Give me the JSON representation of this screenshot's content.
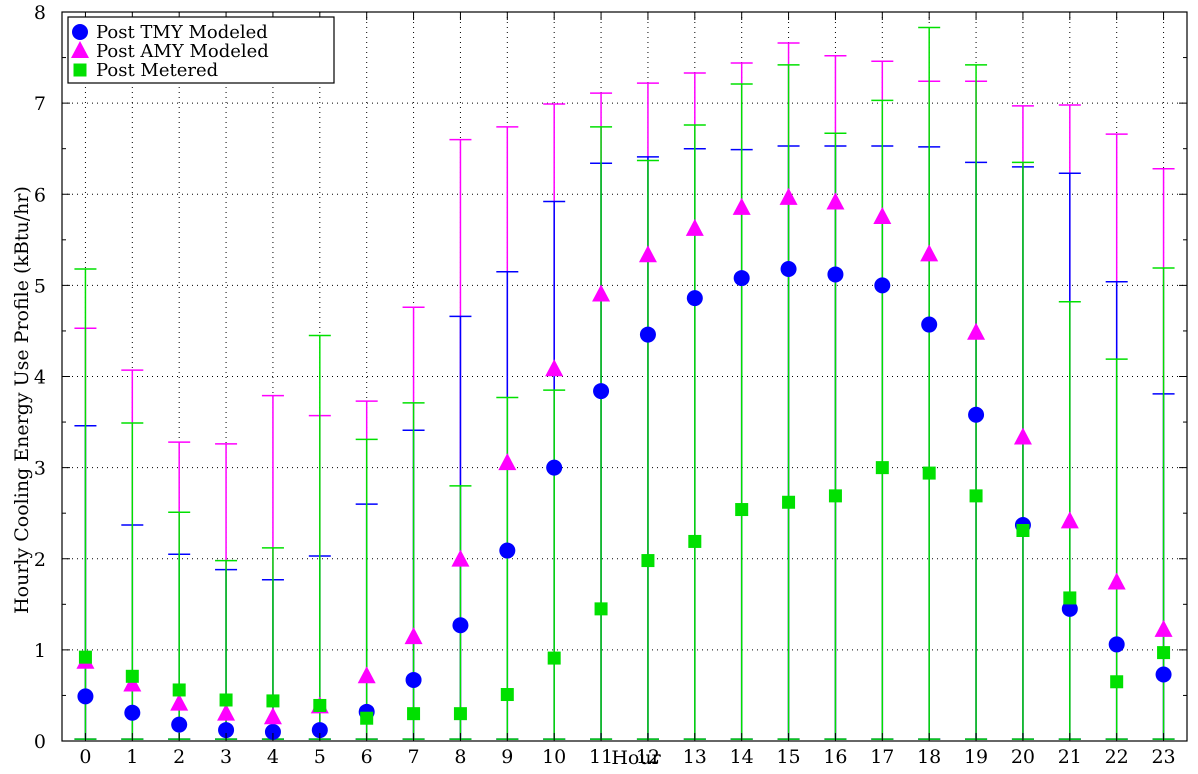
{
  "chart_data": {
    "type": "scatter",
    "xlabel": "Hour",
    "ylabel": "Hourly Cooling Energy Use Profile (kBtu/hr)",
    "xlim": [
      -0.5,
      23.5
    ],
    "ylim": [
      0,
      8
    ],
    "x_ticks": [
      0,
      1,
      2,
      3,
      4,
      5,
      6,
      7,
      8,
      9,
      10,
      11,
      12,
      13,
      14,
      15,
      16,
      17,
      18,
      19,
      20,
      21,
      22,
      23
    ],
    "y_ticks": [
      0,
      1,
      2,
      3,
      4,
      5,
      6,
      7,
      8
    ],
    "grid": true,
    "legend_position": "top-left",
    "series": [
      {
        "name": "Post TMY Modeled",
        "marker": "circle",
        "color": "#0000ff",
        "x": [
          0,
          1,
          2,
          3,
          4,
          5,
          6,
          7,
          8,
          9,
          10,
          11,
          12,
          13,
          14,
          15,
          16,
          17,
          18,
          19,
          20,
          21,
          22,
          23
        ],
        "values": [
          0.49,
          0.31,
          0.18,
          0.12,
          0.1,
          0.12,
          0.32,
          0.67,
          1.27,
          2.09,
          3.0,
          3.84,
          4.46,
          4.86,
          5.08,
          5.18,
          5.12,
          5.0,
          4.57,
          3.58,
          2.37,
          1.45,
          1.06,
          0.73
        ],
        "error_low": [
          0.02,
          0.02,
          0.02,
          0.02,
          0.02,
          0.02,
          0.02,
          0.02,
          0.02,
          0.02,
          0.02,
          0.02,
          0.02,
          0.02,
          0.02,
          0.02,
          0.02,
          0.02,
          0.02,
          0.02,
          0.02,
          0.02,
          0.02,
          0.02
        ],
        "error_high": [
          3.46,
          2.37,
          2.05,
          1.88,
          1.77,
          2.03,
          2.6,
          3.41,
          4.66,
          5.15,
          5.92,
          6.34,
          6.41,
          6.5,
          6.49,
          6.53,
          6.53,
          6.53,
          6.52,
          6.35,
          6.3,
          6.23,
          5.04,
          3.81
        ]
      },
      {
        "name": "Post AMY Modeled",
        "marker": "triangle",
        "color": "#ff00ff",
        "x": [
          0,
          1,
          2,
          3,
          4,
          5,
          6,
          7,
          8,
          9,
          10,
          11,
          12,
          13,
          14,
          15,
          16,
          17,
          18,
          19,
          20,
          21,
          22,
          23
        ],
        "values": [
          0.87,
          0.62,
          0.41,
          0.3,
          0.26,
          0.38,
          0.71,
          1.14,
          1.99,
          3.05,
          4.08,
          4.9,
          5.33,
          5.62,
          5.85,
          5.96,
          5.91,
          5.75,
          5.34,
          4.48,
          3.33,
          2.41,
          1.74,
          1.22
        ],
        "error_low": [
          0.02,
          0.02,
          0.02,
          0.02,
          0.02,
          0.02,
          0.02,
          0.02,
          0.02,
          0.02,
          0.02,
          0.02,
          0.02,
          0.02,
          0.02,
          0.02,
          0.02,
          0.02,
          0.02,
          0.02,
          0.02,
          0.02,
          0.02,
          0.02
        ],
        "error_high": [
          4.53,
          4.07,
          3.28,
          3.26,
          3.79,
          3.57,
          3.73,
          4.76,
          6.6,
          6.74,
          6.99,
          7.11,
          7.22,
          7.33,
          7.44,
          7.66,
          7.52,
          7.46,
          7.24,
          7.24,
          6.97,
          6.98,
          6.66,
          6.28
        ]
      },
      {
        "name": "Post Metered",
        "marker": "square",
        "color": "#00e000",
        "x": [
          0,
          1,
          2,
          3,
          4,
          5,
          6,
          7,
          8,
          9,
          10,
          11,
          12,
          13,
          14,
          15,
          16,
          17,
          18,
          19,
          20,
          21,
          22,
          23
        ],
        "values": [
          0.92,
          0.71,
          0.56,
          0.45,
          0.44,
          0.39,
          0.25,
          0.3,
          0.3,
          0.51,
          0.91,
          1.45,
          1.98,
          2.19,
          2.54,
          2.62,
          2.69,
          3.0,
          2.94,
          2.69,
          2.31,
          1.57,
          0.65,
          0.97
        ],
        "error_low": [
          0.02,
          0.02,
          0.02,
          0.02,
          0.02,
          0.02,
          0.02,
          0.02,
          0.02,
          0.02,
          0.02,
          0.02,
          0.02,
          0.02,
          0.02,
          0.02,
          0.02,
          0.02,
          0.02,
          0.02,
          0.02,
          0.02,
          0.02,
          0.02
        ],
        "error_high": [
          5.18,
          3.49,
          2.51,
          1.98,
          2.12,
          4.45,
          3.31,
          3.71,
          2.8,
          3.77,
          3.85,
          6.74,
          6.37,
          6.76,
          7.21,
          7.42,
          6.67,
          7.03,
          7.83,
          7.42,
          6.35,
          4.82,
          4.19,
          5.19
        ]
      }
    ]
  }
}
